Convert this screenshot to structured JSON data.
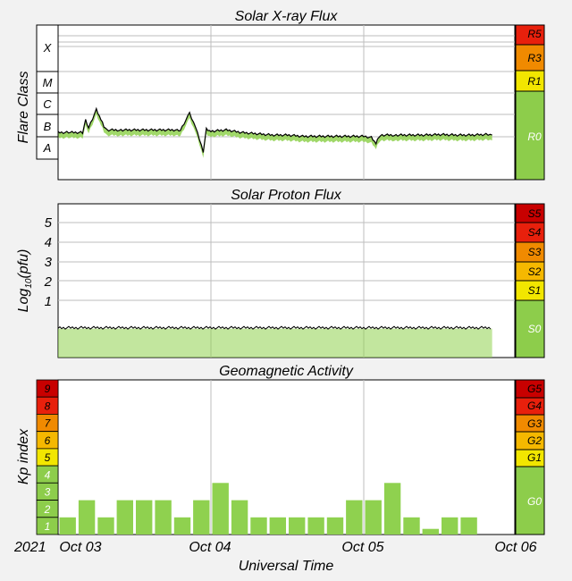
{
  "colors": {
    "background": "#f2f2f2",
    "plot_bg": "#ffffff",
    "grid": "#bdbdbd",
    "trace": "#000000",
    "fill_green": "#8fd14f",
    "scale_green": "#8dcd4b",
    "scale_yellow": "#f2e600",
    "scale_amber": "#f5b800",
    "scale_orange": "#f08a00",
    "scale_red": "#e8200c",
    "scale_darkred": "#c80000"
  },
  "time_axis": {
    "title": "Universal Time",
    "year": "2021",
    "ticks": [
      "Oct 03",
      "Oct 04",
      "Oct 05",
      "Oct 06"
    ]
  },
  "chart_data": [
    {
      "type": "area",
      "title": "Solar X-ray Flux",
      "ylabel": "Flare Class",
      "y_scale": "log",
      "class_labels": [
        "X",
        "M",
        "C",
        "B",
        "A"
      ],
      "scale_labels": [
        "R5",
        "R3",
        "R1",
        "R0"
      ],
      "current_level": "R0",
      "series": [
        {
          "x_days": [
            0,
            0.08,
            0.16,
            0.18,
            0.2,
            0.25,
            0.28,
            0.3,
            0.32,
            0.4,
            0.5,
            0.6,
            0.7,
            0.78,
            0.8,
            0.86,
            0.9,
            0.95,
            0.97,
            1.0,
            1.1,
            1.2,
            1.3,
            1.4,
            1.5,
            1.6,
            1.7,
            1.8,
            1.9,
            2.0,
            2.05,
            2.08,
            2.1,
            2.12,
            2.2,
            2.3,
            2.4,
            2.5,
            2.6,
            2.7,
            2.8,
            2.84
          ],
          "level": [
            -7.4,
            -7.4,
            -7.4,
            -6.9,
            -7.2,
            -6.5,
            -6.9,
            -7.15,
            -7.3,
            -7.3,
            -7.3,
            -7.3,
            -7.3,
            -7.3,
            -7.3,
            -6.65,
            -7.2,
            -8.15,
            -7.25,
            -7.35,
            -7.3,
            -7.4,
            -7.45,
            -7.5,
            -7.5,
            -7.55,
            -7.55,
            -7.55,
            -7.55,
            -7.55,
            -7.6,
            -7.85,
            -7.55,
            -7.5,
            -7.5,
            -7.5,
            -7.5,
            -7.48,
            -7.5,
            -7.5,
            -7.48,
            -7.5
          ]
        }
      ],
      "ylim": [
        -9,
        -3
      ]
    },
    {
      "type": "area",
      "title": "Solar Proton Flux",
      "ylabel": "Log10(pfu)",
      "ytick_labels": [
        "5",
        "4",
        "3",
        "2",
        "1"
      ],
      "scale_labels": [
        "S5",
        "S4",
        "S3",
        "S2",
        "S1",
        "S0"
      ],
      "current_level": "S0",
      "ylim": [
        -1.3,
        6
      ],
      "series": [
        {
          "x_days": [
            0,
            2.84
          ],
          "values": [
            -0.35,
            -0.35
          ]
        }
      ]
    },
    {
      "type": "bar",
      "title": "Geomagnetic Activity",
      "ylabel": "Kp index",
      "kp_labels": [
        "9",
        "8",
        "7",
        "6",
        "5",
        "4",
        "3",
        "2",
        "1"
      ],
      "scale_labels": [
        "G5",
        "G4",
        "G3",
        "G2",
        "G1",
        "G0"
      ],
      "current_level": "G0",
      "ylim": [
        0,
        9
      ],
      "bar_width_days": 0.125,
      "values": [
        1,
        2,
        1,
        2,
        2,
        2,
        1,
        2,
        3,
        2,
        1,
        1,
        1,
        1,
        1,
        2,
        2,
        3,
        1,
        0.33,
        1,
        1
      ]
    }
  ]
}
